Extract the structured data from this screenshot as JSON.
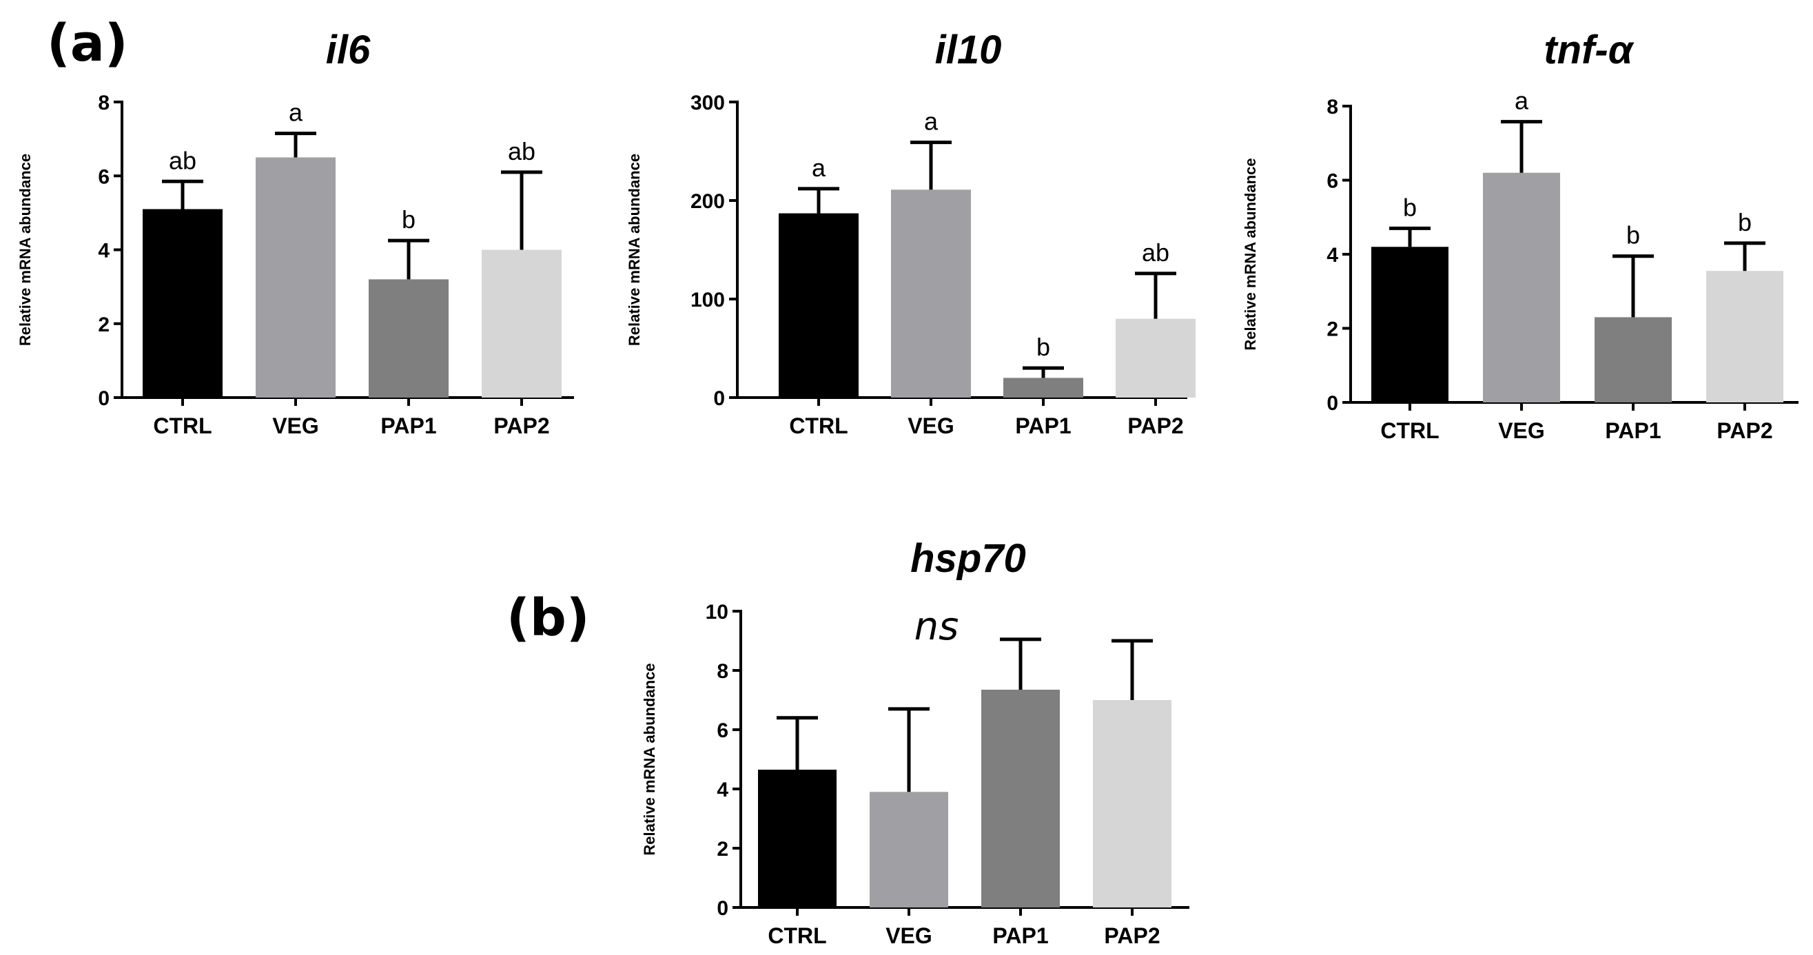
{
  "panels": {
    "a": "(a)",
    "b": "(b)"
  },
  "colors": {
    "CTRL": "#000000",
    "VEG": "#a0a0a4",
    "PAP1": "#7f7f7f",
    "PAP2": "#d6d6d6"
  },
  "chart_data": [
    {
      "id": "il6",
      "type": "bar",
      "title": "il6",
      "panel": "a",
      "ylabel": "Relative mRNA abundance",
      "xlabel": "",
      "categories": [
        "CTRL",
        "VEG",
        "PAP1",
        "PAP2"
      ],
      "values": [
        5.1,
        6.5,
        3.2,
        4.0
      ],
      "errors": [
        0.75,
        0.65,
        1.05,
        2.1
      ],
      "labels": [
        "ab",
        "a",
        "b",
        "ab"
      ],
      "ylim": [
        0,
        8
      ],
      "yticks": [
        0,
        2,
        4,
        6,
        8
      ],
      "grid": false
    },
    {
      "id": "il10",
      "type": "bar",
      "title": "il10",
      "panel": "a",
      "ylabel": "Relative mRNA abundance",
      "xlabel": "",
      "categories": [
        "CTRL",
        "VEG",
        "PAP1",
        "PAP2"
      ],
      "values": [
        187,
        211,
        20,
        80
      ],
      "errors": [
        25,
        48,
        10,
        46
      ],
      "labels": [
        "a",
        "a",
        "b",
        "ab"
      ],
      "ylim": [
        0,
        300
      ],
      "yticks": [
        0,
        100,
        200,
        300
      ],
      "grid": false
    },
    {
      "id": "tnf",
      "type": "bar",
      "title": "tnf-α",
      "panel": "a",
      "ylabel": "Relative mRNA abundance",
      "xlabel": "",
      "categories": [
        "CTRL",
        "VEG",
        "PAP1",
        "PAP2"
      ],
      "values": [
        4.2,
        6.2,
        2.3,
        3.55
      ],
      "errors": [
        0.5,
        1.38,
        1.65,
        0.75
      ],
      "labels": [
        "b",
        "a",
        "b",
        "b"
      ],
      "ylim": [
        0,
        8
      ],
      "yticks": [
        0,
        2,
        4,
        6,
        8
      ],
      "grid": false
    },
    {
      "id": "hsp70",
      "type": "bar",
      "title": "hsp70",
      "panel": "b",
      "ylabel": "Relative mRNA abundance",
      "xlabel": "",
      "categories": [
        "CTRL",
        "VEG",
        "PAP1",
        "PAP2"
      ],
      "values": [
        4.65,
        3.9,
        7.35,
        7.0
      ],
      "errors": [
        1.75,
        2.8,
        1.7,
        2.0
      ],
      "labels": [
        "",
        "",
        "",
        ""
      ],
      "note": "ns",
      "ylim": [
        0,
        10
      ],
      "yticks": [
        0,
        2,
        4,
        6,
        8,
        10
      ],
      "grid": false
    }
  ]
}
